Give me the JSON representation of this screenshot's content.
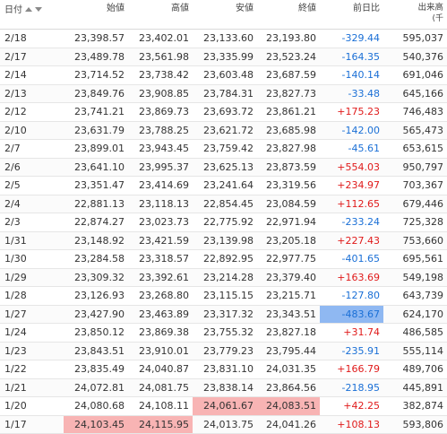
{
  "header": {
    "date": "日付",
    "open": "始値",
    "high": "高値",
    "low": "安値",
    "close": "終値",
    "change": "前日比",
    "volume": "出来高",
    "volume_unit": "(千"
  },
  "rows": [
    {
      "date": "2/18",
      "open": "23,398.57",
      "high": "23,402.01",
      "low": "23,133.60",
      "close": "23,193.80",
      "change": "-329.44",
      "volume": "595,037"
    },
    {
      "date": "2/17",
      "open": "23,489.78",
      "high": "23,561.98",
      "low": "23,335.99",
      "close": "23,523.24",
      "change": "-164.35",
      "volume": "540,376"
    },
    {
      "date": "2/14",
      "open": "23,714.52",
      "high": "23,738.42",
      "low": "23,603.48",
      "close": "23,687.59",
      "change": "-140.14",
      "volume": "691,046"
    },
    {
      "date": "2/13",
      "open": "23,849.76",
      "high": "23,908.85",
      "low": "23,784.31",
      "close": "23,827.73",
      "change": "-33.48",
      "volume": "645,166"
    },
    {
      "date": "2/12",
      "open": "23,741.21",
      "high": "23,869.73",
      "low": "23,693.72",
      "close": "23,861.21",
      "change": "+175.23",
      "volume": "746,483"
    },
    {
      "date": "2/10",
      "open": "23,631.79",
      "high": "23,788.25",
      "low": "23,621.72",
      "close": "23,685.98",
      "change": "-142.00",
      "volume": "565,473"
    },
    {
      "date": "2/7",
      "open": "23,899.01",
      "high": "23,943.45",
      "low": "23,759.42",
      "close": "23,827.98",
      "change": "-45.61",
      "volume": "653,615"
    },
    {
      "date": "2/6",
      "open": "23,641.10",
      "high": "23,995.37",
      "low": "23,625.13",
      "close": "23,873.59",
      "change": "+554.03",
      "volume": "950,797"
    },
    {
      "date": "2/5",
      "open": "23,351.47",
      "high": "23,414.69",
      "low": "23,241.64",
      "close": "23,319.56",
      "change": "+234.97",
      "volume": "703,367"
    },
    {
      "date": "2/4",
      "open": "22,881.13",
      "high": "23,118.13",
      "low": "22,854.45",
      "close": "23,084.59",
      "change": "+112.65",
      "volume": "679,446"
    },
    {
      "date": "2/3",
      "open": "22,874.27",
      "high": "23,023.73",
      "low": "22,775.92",
      "close": "22,971.94",
      "change": "-233.24",
      "volume": "725,328"
    },
    {
      "date": "1/31",
      "open": "23,148.92",
      "high": "23,421.59",
      "low": "23,139.98",
      "close": "23,205.18",
      "change": "+227.43",
      "volume": "753,660"
    },
    {
      "date": "1/30",
      "open": "23,284.58",
      "high": "23,318.57",
      "low": "22,892.95",
      "close": "22,977.75",
      "change": "-401.65",
      "volume": "695,561"
    },
    {
      "date": "1/29",
      "open": "23,309.32",
      "high": "23,392.61",
      "low": "23,214.28",
      "close": "23,379.40",
      "change": "+163.69",
      "volume": "549,198"
    },
    {
      "date": "1/28",
      "open": "23,126.93",
      "high": "23,268.80",
      "low": "23,115.15",
      "close": "23,215.71",
      "change": "-127.80",
      "volume": "643,739"
    },
    {
      "date": "1/27",
      "open": "23,427.90",
      "high": "23,463.89",
      "low": "23,317.32",
      "close": "23,343.51",
      "change": "-483.67",
      "volume": "624,170"
    },
    {
      "date": "1/24",
      "open": "23,850.12",
      "high": "23,869.38",
      "low": "23,755.32",
      "close": "23,827.18",
      "change": "+31.74",
      "volume": "486,585"
    },
    {
      "date": "1/23",
      "open": "23,843.51",
      "high": "23,910.01",
      "low": "23,779.23",
      "close": "23,795.44",
      "change": "-235.91",
      "volume": "555,114"
    },
    {
      "date": "1/22",
      "open": "23,835.49",
      "high": "24,040.87",
      "low": "23,831.10",
      "close": "24,031.35",
      "change": "+166.79",
      "volume": "489,706"
    },
    {
      "date": "1/21",
      "open": "24,072.81",
      "high": "24,081.75",
      "low": "23,838.14",
      "close": "23,864.56",
      "change": "-218.95",
      "volume": "445,891"
    },
    {
      "date": "1/20",
      "open": "24,080.68",
      "high": "24,108.11",
      "low": "24,061.67",
      "close": "24,083.51",
      "change": "+42.25",
      "volume": "382,874"
    },
    {
      "date": "1/17",
      "open": "24,103.45",
      "high": "24,115.95",
      "low": "24,013.75",
      "close": "24,041.26",
      "change": "+108.13",
      "volume": "593,806"
    }
  ],
  "colors": {
    "negative": "#1a6fd6",
    "positive": "#e01a1a",
    "highlight_red": "#f8b4b4",
    "highlight_blue": "#8fb8f2"
  }
}
